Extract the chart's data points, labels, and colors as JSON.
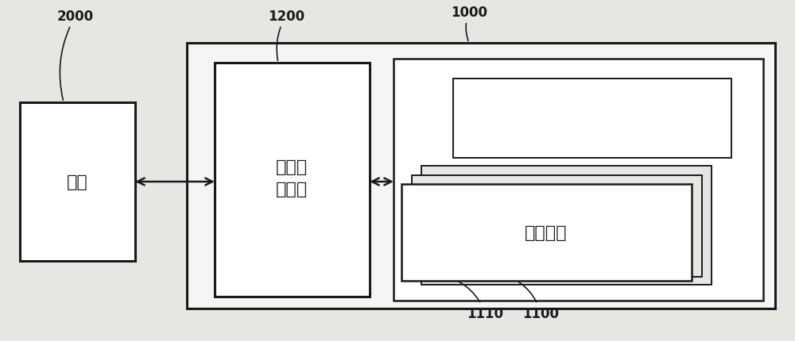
{
  "bg_color": "#e8e6e3",
  "line_color": "#1a1a1a",
  "box_fill": "#ffffff",
  "box_fill_light": "#f5f5f5",
  "label_2000": "2000",
  "label_1200": "1200",
  "label_1000": "1000",
  "label_1100": "1100",
  "label_1110": "1110",
  "text_host": "主机",
  "text_controller": "存储器\n控制器",
  "text_storage": "储存器件",
  "font_size_label": 12,
  "font_size_text": 16,
  "font_size_text_sm": 13
}
